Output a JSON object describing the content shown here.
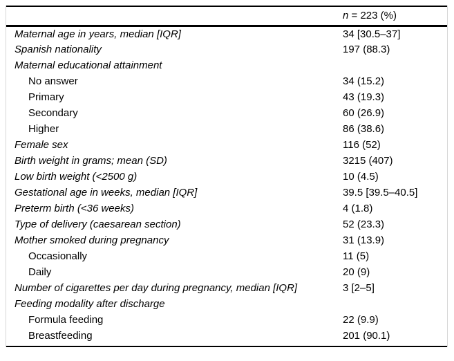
{
  "table": {
    "header": {
      "symbol": "n",
      "rest": " = 223 (%)"
    },
    "rows": [
      {
        "label": "Maternal age in years, median [IQR]",
        "value": "34 [30.5–37]",
        "indent": false
      },
      {
        "label": "Spanish nationality",
        "value": "197 (88.3)",
        "indent": false
      },
      {
        "label": "Maternal educational attainment",
        "value": "",
        "indent": false
      },
      {
        "label": "No answer",
        "value": "34 (15.2)",
        "indent": true
      },
      {
        "label": "Primary",
        "value": "43 (19.3)",
        "indent": true
      },
      {
        "label": "Secondary",
        "value": "60 (26.9)",
        "indent": true
      },
      {
        "label": "Higher",
        "value": "86 (38.6)",
        "indent": true
      },
      {
        "label": "Female sex",
        "value": "116 (52)",
        "indent": false
      },
      {
        "label": "Birth weight in grams; mean (SD)",
        "value": "3215 (407)",
        "indent": false
      },
      {
        "label": "Low birth weight (<2500 g)",
        "value": "10 (4.5)",
        "indent": false
      },
      {
        "label": "Gestational age in weeks, median [IQR]",
        "value": "39.5 [39.5–40.5]",
        "indent": false
      },
      {
        "label": "Preterm birth (<36 weeks)",
        "value": "4 (1.8)",
        "indent": false
      },
      {
        "label": "Type of delivery (caesarean section)",
        "value": "52 (23.3)",
        "indent": false
      },
      {
        "label": "Mother smoked during pregnancy",
        "value": "31 (13.9)",
        "indent": false
      },
      {
        "label": "Occasionally",
        "value": "11 (5)",
        "indent": true
      },
      {
        "label": "Daily",
        "value": "20 (9)",
        "indent": true
      },
      {
        "label": "Number of cigarettes per day during pregnancy, median [IQR]",
        "value": "3 [2–5]",
        "indent": false
      },
      {
        "label": "Feeding modality after discharge",
        "value": "",
        "indent": false
      },
      {
        "label": "Formula feeding",
        "value": "22 (9.9)",
        "indent": true
      },
      {
        "label": "Breastfeeding",
        "value": "201 (90.1)",
        "indent": true
      }
    ],
    "colors": {
      "rule": "#000000",
      "side_border": "#d6d6d6",
      "text": "#000000",
      "background": "#ffffff"
    }
  }
}
